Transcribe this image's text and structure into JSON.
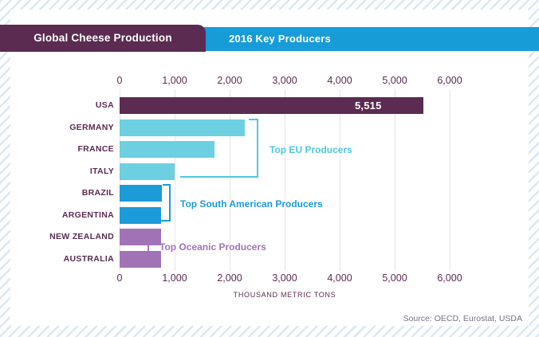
{
  "header": {
    "title": "Global Cheese Production",
    "subtitle": "2016 Key Producers"
  },
  "chart_data": {
    "type": "bar",
    "orientation": "horizontal",
    "title": "Global Cheese Production",
    "subtitle": "2016 Key Producers",
    "xlabel": "THOUSAND METRIC TONS",
    "x_axis": {
      "min": 0,
      "max": 6000,
      "tick_values": [
        0,
        1000,
        2000,
        3000,
        4000,
        5000,
        6000
      ],
      "tick_labels": [
        "0",
        "1,000",
        "2,000",
        "3,000",
        "4,000",
        "5,000",
        "6,000"
      ],
      "grid": true,
      "axis_shown": "top and bottom"
    },
    "categories": [
      "USA",
      "GERMANY",
      "FRANCE",
      "ITALY",
      "BRAZIL",
      "ARGENTINA",
      "NEW ZEALAND",
      "AUSTRALIA"
    ],
    "values": [
      5515,
      2280,
      1730,
      1000,
      765,
      520,
      350,
      330
    ],
    "value_labels": [
      "5,515",
      "",
      "",
      "",
      "",
      "",
      "",
      ""
    ],
    "bar_colors": [
      "#5b2b51",
      "#6cd0e0",
      "#6cd0e0",
      "#6cd0e0",
      "#1b9bd8",
      "#1b9bd8",
      "#a173b6",
      "#a173b6"
    ],
    "annotations": [
      {
        "label": "Top EU Producers",
        "members": [
          "GERMANY",
          "FRANCE",
          "ITALY"
        ],
        "color": "#4ec9de"
      },
      {
        "label": "Top South American Producers",
        "members": [
          "BRAZIL",
          "ARGENTINA"
        ],
        "color": "#1b9bd8"
      },
      {
        "label": "Top Oceanic Producers",
        "members": [
          "NEW ZEALAND",
          "AUSTRALIA"
        ],
        "color": "#a173b6"
      }
    ]
  },
  "footer": {
    "source": "Source: OECD, Eurostat, USDA"
  },
  "colors": {
    "plum": "#5b2b51",
    "header_blue": "#189cd8",
    "cyan_bar": "#6cd0e0",
    "cyan_bracket": "#4ec9de",
    "blue_bar": "#1b9bd8",
    "purple_bar": "#a173b6",
    "gridline": "#e6e4e7",
    "stripe": "#dbe8f5"
  }
}
